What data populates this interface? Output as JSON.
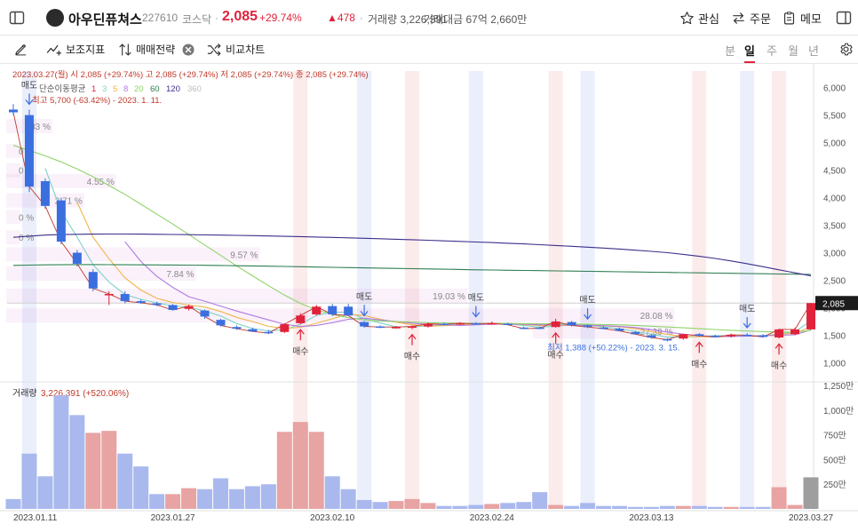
{
  "header": {
    "stock_name": "아우딘퓨쳐스",
    "stock_code": "227610",
    "market": "코스닥",
    "separator": "·",
    "price": "2,085",
    "change_pct": "+29.74%",
    "change_abs": "478",
    "volume_text": "거래량 3,226,391",
    "amount_text": "거래대금 67억 2,660만",
    "watch_label": "관심",
    "order_label": "주문",
    "memo_label": "메모"
  },
  "toolbar": {
    "indicator_label": "보조지표",
    "strategy_label": "매매전략",
    "compare_label": "비교차트",
    "periods": [
      "분",
      "일",
      "주",
      "월",
      "년"
    ],
    "active_period": "일"
  },
  "chart_data": {
    "type": "candlestick",
    "info_line": "2023.03.27(월)  시 2,085 (+29.74%)  고 2,085 (+29.74%)  저 2,085 (+29.74%)  종 2,085 (+29.74%)",
    "ma_legend_title": "단순이동평균",
    "ma_periods": [
      "1",
      "3",
      "5",
      "8",
      "20",
      "60",
      "120",
      "360"
    ],
    "ma_colors": [
      "#e0233b",
      "#7bd3c8",
      "#f0b54a",
      "#b07be0",
      "#8fd46a",
      "#2e7d52",
      "#3b2f8a",
      "#bdbdbd"
    ],
    "high_note": "최고 5,700 (-63.42%) - 2023. 1. 11.",
    "low_note": "최저 1,388 (+50.22%) - 2023. 3. 15.",
    "current_price_label": "2,085",
    "ylim": [
      750,
      6300
    ],
    "y_ticks": [
      1000,
      1500,
      2000,
      2500,
      3000,
      3500,
      4000,
      4500,
      5000,
      5500,
      6000
    ],
    "y_tick_labels": [
      "1,000",
      "1,500",
      "2,000",
      "2,500",
      "3,000",
      "3,500",
      "4,000",
      "4,500",
      "5,000",
      "5,500",
      "6,000"
    ],
    "x_labels": [
      {
        "index": 0,
        "label": "2023.01.11"
      },
      {
        "index": 10,
        "label": "2023.01.27"
      },
      {
        "index": 20,
        "label": "2023.02.10"
      },
      {
        "index": 30,
        "label": "2023.02.24"
      },
      {
        "index": 40,
        "label": "2023.03.13"
      },
      {
        "index": 50,
        "label": "2023.03.27"
      }
    ],
    "candles": [
      {
        "o": 5600,
        "h": 5700,
        "l": 5500,
        "c": 5550
      },
      {
        "o": 5500,
        "h": 5600,
        "l": 4100,
        "c": 4200
      },
      {
        "o": 4300,
        "h": 4350,
        "l": 3800,
        "c": 3850
      },
      {
        "o": 3950,
        "h": 4000,
        "l": 3150,
        "c": 3200
      },
      {
        "o": 3000,
        "h": 3050,
        "l": 2750,
        "c": 2800
      },
      {
        "o": 2650,
        "h": 2700,
        "l": 2300,
        "c": 2350
      },
      {
        "o": 2250,
        "h": 2300,
        "l": 2050,
        "c": 2250
      },
      {
        "o": 2250,
        "h": 2300,
        "l": 2080,
        "c": 2120
      },
      {
        "o": 2120,
        "h": 2150,
        "l": 2070,
        "c": 2090
      },
      {
        "o": 2080,
        "h": 2110,
        "l": 2030,
        "c": 2050
      },
      {
        "o": 2050,
        "h": 2070,
        "l": 1950,
        "c": 1960
      },
      {
        "o": 1980,
        "h": 2060,
        "l": 1950,
        "c": 2030
      },
      {
        "o": 1950,
        "h": 1970,
        "l": 1800,
        "c": 1840
      },
      {
        "o": 1780,
        "h": 1800,
        "l": 1660,
        "c": 1680
      },
      {
        "o": 1650,
        "h": 1680,
        "l": 1600,
        "c": 1620
      },
      {
        "o": 1610,
        "h": 1640,
        "l": 1560,
        "c": 1570
      },
      {
        "o": 1560,
        "h": 1600,
        "l": 1520,
        "c": 1540
      },
      {
        "o": 1560,
        "h": 1720,
        "l": 1540,
        "c": 1700
      },
      {
        "o": 1720,
        "h": 1900,
        "l": 1700,
        "c": 1860
      },
      {
        "o": 1880,
        "h": 2050,
        "l": 1860,
        "c": 2020
      },
      {
        "o": 2030,
        "h": 2070,
        "l": 1850,
        "c": 1880
      },
      {
        "o": 2020,
        "h": 2070,
        "l": 1860,
        "c": 1860
      },
      {
        "o": 1740,
        "h": 1760,
        "l": 1640,
        "c": 1660
      },
      {
        "o": 1660,
        "h": 1680,
        "l": 1630,
        "c": 1650
      },
      {
        "o": 1640,
        "h": 1670,
        "l": 1620,
        "c": 1650
      },
      {
        "o": 1640,
        "h": 1680,
        "l": 1610,
        "c": 1660
      },
      {
        "o": 1660,
        "h": 1730,
        "l": 1640,
        "c": 1710
      },
      {
        "o": 1710,
        "h": 1730,
        "l": 1680,
        "c": 1700
      },
      {
        "o": 1710,
        "h": 1740,
        "l": 1690,
        "c": 1720
      },
      {
        "o": 1720,
        "h": 1740,
        "l": 1690,
        "c": 1710
      },
      {
        "o": 1720,
        "h": 1750,
        "l": 1690,
        "c": 1720
      },
      {
        "o": 1710,
        "h": 1730,
        "l": 1680,
        "c": 1690
      },
      {
        "o": 1640,
        "h": 1660,
        "l": 1610,
        "c": 1620
      },
      {
        "o": 1640,
        "h": 1660,
        "l": 1610,
        "c": 1630
      },
      {
        "o": 1650,
        "h": 1800,
        "l": 1640,
        "c": 1750
      },
      {
        "o": 1740,
        "h": 1760,
        "l": 1660,
        "c": 1680
      },
      {
        "o": 1680,
        "h": 1700,
        "l": 1630,
        "c": 1650
      },
      {
        "o": 1640,
        "h": 1660,
        "l": 1610,
        "c": 1620
      },
      {
        "o": 1620,
        "h": 1640,
        "l": 1570,
        "c": 1580
      },
      {
        "o": 1560,
        "h": 1580,
        "l": 1510,
        "c": 1520
      },
      {
        "o": 1500,
        "h": 1520,
        "l": 1440,
        "c": 1460
      },
      {
        "o": 1430,
        "h": 1450,
        "l": 1388,
        "c": 1420
      },
      {
        "o": 1440,
        "h": 1530,
        "l": 1420,
        "c": 1520
      },
      {
        "o": 1520,
        "h": 1540,
        "l": 1470,
        "c": 1490
      },
      {
        "o": 1490,
        "h": 1510,
        "l": 1460,
        "c": 1470
      },
      {
        "o": 1480,
        "h": 1530,
        "l": 1460,
        "c": 1510
      },
      {
        "o": 1510,
        "h": 1540,
        "l": 1480,
        "c": 1500
      },
      {
        "o": 1500,
        "h": 1520,
        "l": 1460,
        "c": 1470
      },
      {
        "o": 1460,
        "h": 1620,
        "l": 1440,
        "c": 1607
      },
      {
        "o": 1520,
        "h": 1640,
        "l": 1500,
        "c": 1607
      },
      {
        "o": 1607,
        "h": 2085,
        "l": 1600,
        "c": 2085
      }
    ],
    "ma_lines": [
      {
        "period": "3",
        "color": "#7bd3c8",
        "values": [
          null,
          null,
          4533,
          3750,
          3283,
          2783,
          2467,
          2240,
          2153,
          2087,
          2033,
          2013,
          1943,
          1850,
          1713,
          1623,
          1577,
          1603,
          1700,
          1860,
          1920,
          1920,
          1800,
          1723,
          1653,
          1653,
          1673,
          1690,
          1710,
          1710,
          1717,
          1707,
          1677,
          1647,
          1667,
          1687,
          1693,
          1650,
          1617,
          1573,
          1520,
          1467,
          1467,
          1477,
          1493,
          1490,
          1493,
          1493,
          1526,
          1561,
          1766
        ]
      },
      {
        "period": "5",
        "color": "#f0b54a",
        "values": [
          null,
          null,
          null,
          null,
          3920,
          3280,
          2890,
          2544,
          2322,
          2172,
          2094,
          2048,
          2014,
          1932,
          1826,
          1748,
          1662,
          1624,
          1646,
          1718,
          1800,
          1884,
          1856,
          1792,
          1738,
          1693,
          1665,
          1674,
          1688,
          1708,
          1712,
          1708,
          1692,
          1677,
          1682,
          1678,
          1680,
          1669,
          1656,
          1620,
          1566,
          1516,
          1480,
          1476,
          1468,
          1479,
          1490,
          1488,
          1518,
          1539,
          1655
        ]
      },
      {
        "period": "8",
        "color": "#b07be0",
        "values": [
          null,
          null,
          null,
          null,
          null,
          null,
          null,
          3200,
          2840,
          2570,
          2370,
          2200,
          2120,
          2030,
          1940,
          1860,
          1780,
          1700,
          1660,
          1680,
          1730,
          1790,
          1810,
          1780,
          1750,
          1720,
          1700,
          1690,
          1680,
          1690,
          1700,
          1705,
          1700,
          1690,
          1690,
          1685,
          1680,
          1675,
          1660,
          1640,
          1600,
          1560,
          1520,
          1490,
          1480,
          1480,
          1485,
          1490,
          1500,
          1510,
          1600
        ]
      },
      {
        "period": "20",
        "color": "#8fd46a",
        "values": [
          4950,
          4860,
          4760,
          4650,
          4520,
          4380,
          4220,
          4060,
          3880,
          3700,
          3520,
          3330,
          3140,
          2950,
          2760,
          2580,
          2400,
          2230,
          2080,
          1960,
          1880,
          1820,
          1780,
          1760,
          1750,
          1740,
          1730,
          1725,
          1720,
          1718,
          1716,
          1714,
          1712,
          1710,
          1708,
          1705,
          1700,
          1695,
          1690,
          1680,
          1665,
          1650,
          1635,
          1620,
          1605,
          1590,
          1578,
          1566,
          1560,
          1556,
          1590
        ]
      },
      {
        "period": "60",
        "color": "#2e7d52",
        "values": [
          2770,
          2775,
          2780,
          2782,
          2784,
          2784,
          2783,
          2782,
          2780,
          2778,
          2776,
          2774,
          2772,
          2768,
          2764,
          2760,
          2755,
          2750,
          2745,
          2740,
          2735,
          2730,
          2725,
          2720,
          2715,
          2710,
          2705,
          2700,
          2695,
          2690,
          2686,
          2682,
          2678,
          2674,
          2670,
          2666,
          2662,
          2658,
          2654,
          2650,
          2646,
          2642,
          2638,
          2634,
          2630,
          2626,
          2622,
          2618,
          2614,
          2610,
          2606
        ]
      },
      {
        "period": "120",
        "color": "#3b2f8a",
        "values": [
          3280,
          3300,
          3320,
          3330,
          3335,
          3338,
          3340,
          3340,
          3338,
          3335,
          3332,
          3328,
          3324,
          3320,
          3315,
          3310,
          3304,
          3298,
          3292,
          3285,
          3278,
          3270,
          3262,
          3254,
          3245,
          3236,
          3226,
          3216,
          3206,
          3195,
          3184,
          3172,
          3160,
          3146,
          3132,
          3117,
          3101,
          3084,
          3066,
          3046,
          3025,
          3000,
          2970,
          2935,
          2895,
          2850,
          2800,
          2745,
          2690,
          2635,
          2580
        ]
      }
    ],
    "volume": {
      "title": "거래량",
      "value_text": "3,226,391 (+520.06%)",
      "ylim": [
        0,
        1250
      ],
      "y_tick_values": [
        250,
        500,
        750,
        1000,
        1250
      ],
      "y_tick_labels": [
        "250만",
        "500만",
        "750만",
        "1,000만",
        "1,250만"
      ],
      "values": [
        100,
        560,
        330,
        1150,
        950,
        770,
        790,
        560,
        430,
        150,
        150,
        210,
        200,
        310,
        200,
        230,
        250,
        780,
        880,
        780,
        330,
        200,
        90,
        70,
        80,
        100,
        60,
        30,
        30,
        40,
        50,
        60,
        70,
        170,
        40,
        30,
        60,
        30,
        30,
        20,
        20,
        30,
        30,
        30,
        20,
        20,
        20,
        20,
        220,
        40,
        320
      ],
      "up": [
        false,
        false,
        false,
        false,
        false,
        true,
        true,
        false,
        false,
        false,
        true,
        true,
        false,
        false,
        false,
        false,
        false,
        true,
        true,
        true,
        false,
        false,
        false,
        false,
        true,
        true,
        true,
        false,
        false,
        false,
        true,
        false,
        false,
        false,
        true,
        false,
        false,
        false,
        false,
        false,
        false,
        false,
        true,
        false,
        false,
        true,
        false,
        false,
        true,
        true,
        true
      ]
    },
    "signals": [
      {
        "index": 1,
        "type": "sell",
        "label": "매도"
      },
      {
        "index": 18,
        "type": "buy",
        "label": "매수"
      },
      {
        "index": 22,
        "type": "sell",
        "label": "매도"
      },
      {
        "index": 25,
        "type": "buy",
        "label": "매수"
      },
      {
        "index": 29,
        "type": "sell",
        "label": "매도"
      },
      {
        "index": 34,
        "type": "buy",
        "label": "매수"
      },
      {
        "index": 36,
        "type": "sell",
        "label": "매도"
      },
      {
        "index": 43,
        "type": "buy",
        "label": "매수"
      },
      {
        "index": 46,
        "type": "sell",
        "label": "매도"
      },
      {
        "index": 48,
        "type": "buy",
        "label": "매수"
      }
    ],
    "ranges": [
      {
        "label": "83 %",
        "left_idx": 0,
        "right_idx": 2,
        "price": 5300
      },
      {
        "label": "0 %",
        "left_idx": 0,
        "right_idx": 0,
        "price": 4850
      },
      {
        "label": "0 %",
        "left_idx": 0,
        "right_idx": 0,
        "price": 4500
      },
      {
        "label": "4.55 %",
        "left_idx": 0,
        "right_idx": 6,
        "price": 4300
      },
      {
        "label": "2.71 %",
        "left_idx": 0,
        "right_idx": 4,
        "price": 3950
      },
      {
        "label": "0 %",
        "left_idx": 0,
        "right_idx": 0,
        "price": 3650
      },
      {
        "label": "0 %",
        "left_idx": 0,
        "right_idx": 0,
        "price": 3280
      },
      {
        "label": "9.57 %",
        "left_idx": 0,
        "right_idx": 15,
        "price": 2970
      },
      {
        "label": "7.84 %",
        "left_idx": 0,
        "right_idx": 11,
        "price": 2620
      },
      {
        "label": "19.03 %",
        "left_idx": 0,
        "right_idx": 28,
        "price": 2220
      },
      {
        "label": "28.08 %",
        "left_idx": 0,
        "right_idx": 41,
        "price": 1860
      },
      {
        "label": "27.39 %",
        "left_idx": 33,
        "right_idx": 41,
        "price": 1570
      }
    ]
  }
}
